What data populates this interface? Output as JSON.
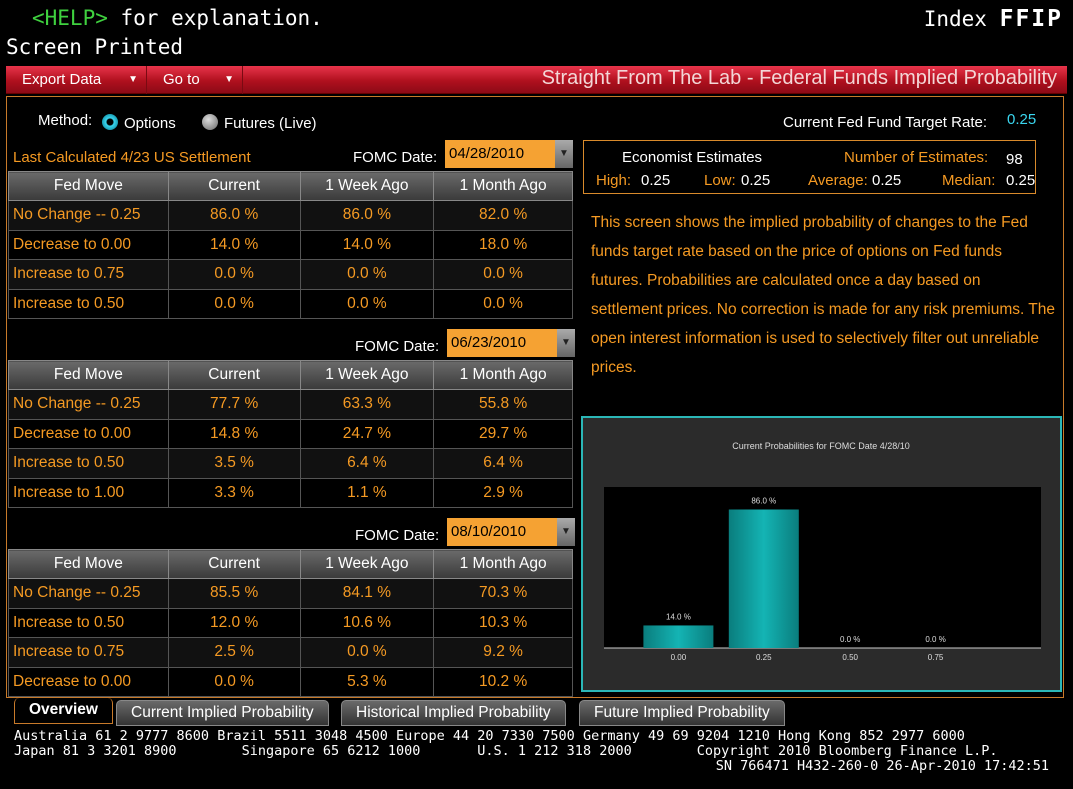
{
  "header": {
    "help_key": "<HELP>",
    "help_text": " for explanation.",
    "screen_printed": "Screen Printed",
    "index_label": "Index",
    "ticker": "FFIP"
  },
  "toolbar": {
    "export": "Export Data",
    "goto": "Go to",
    "title": "Straight From The Lab - Federal Funds Implied Probability"
  },
  "method": {
    "label": "Method:",
    "options": "Options",
    "futures": "Futures (Live)",
    "selected": "Options"
  },
  "target_rate": {
    "label": "Current Fed Fund Target Rate:",
    "value": "0.25"
  },
  "last_calc": "Last Calculated 4/23 US Settlement",
  "fomc_label": "FOMC Date:",
  "columns": [
    "Fed Move",
    "Current",
    "1 Week Ago",
    "1 Month Ago"
  ],
  "tables": [
    {
      "date": "04/28/2010",
      "rows": [
        [
          "No Change -- 0.25",
          "86.0 %",
          "86.0 %",
          "82.0 %"
        ],
        [
          "Decrease to 0.00",
          "14.0 %",
          "14.0 %",
          "18.0 %"
        ],
        [
          "Increase to 0.75",
          "0.0 %",
          "0.0 %",
          "0.0 %"
        ],
        [
          "Increase to 0.50",
          "0.0 %",
          "0.0 %",
          "0.0 %"
        ]
      ]
    },
    {
      "date": "06/23/2010",
      "rows": [
        [
          "No Change -- 0.25",
          "77.7 %",
          "63.3 %",
          "55.8 %"
        ],
        [
          "Decrease to 0.00",
          "14.8 %",
          "24.7 %",
          "29.7 %"
        ],
        [
          "Increase to 0.50",
          "3.5 %",
          "6.4 %",
          "6.4 %"
        ],
        [
          "Increase to 1.00",
          "3.3 %",
          "1.1 %",
          "2.9 %"
        ]
      ]
    },
    {
      "date": "08/10/2010",
      "rows": [
        [
          "No Change -- 0.25",
          "85.5 %",
          "84.1 %",
          "70.3 %"
        ],
        [
          "Increase to 0.50",
          "12.0 %",
          "10.6 %",
          "10.3 %"
        ],
        [
          "Increase to 0.75",
          "2.5 %",
          "0.0 %",
          "9.2 %"
        ],
        [
          "Decrease to 0.00",
          "0.0 %",
          "5.3 %",
          "10.2 %"
        ]
      ]
    }
  ],
  "economist": {
    "title": "Economist Estimates",
    "num_label": "Number of Estimates:",
    "num": "98",
    "high_label": "High:",
    "high": "0.25",
    "low_label": "Low:",
    "low": "0.25",
    "avg_label": "Average:",
    "avg": "0.25",
    "median_label": "Median:",
    "median": "0.25"
  },
  "description": "This screen shows the implied probability of changes to the Fed funds target rate based on the price of options on Fed funds futures. Probabilities are calculated once a day based on settlement prices. No correction is made for any risk premiums. The open interest information is used to selectively filter out unreliable prices.",
  "chart_data": {
    "type": "bar",
    "title": "Current Probabilities for FOMC Date 4/28/10",
    "categories": [
      "0.00",
      "0.25",
      "0.50",
      "0.75"
    ],
    "values": [
      14.0,
      86.0,
      0.0,
      0.0
    ],
    "labels": [
      "14.0 %",
      "86.0 %",
      "0.0 %",
      "0.0 %"
    ],
    "ylim": [
      0,
      100
    ],
    "color": "#14b4b4"
  },
  "tabs": [
    "Overview",
    "Current Implied Probability",
    "Historical Implied Probability",
    "Future Implied Probability"
  ],
  "footer": {
    "line1": "Australia 61 2 9777 8600 Brazil 5511 3048 4500 Europe 44 20 7330 7500 Germany 49 69 9204 1210 Hong Kong 852 2977 6000",
    "line2": "Japan 81 3 3201 8900        Singapore 65 6212 1000       U.S. 1 212 318 2000        Copyright 2010 Bloomberg Finance L.P.",
    "line3": "SN 766471 H432-260-0 26-Apr-2010 17:42:51"
  }
}
